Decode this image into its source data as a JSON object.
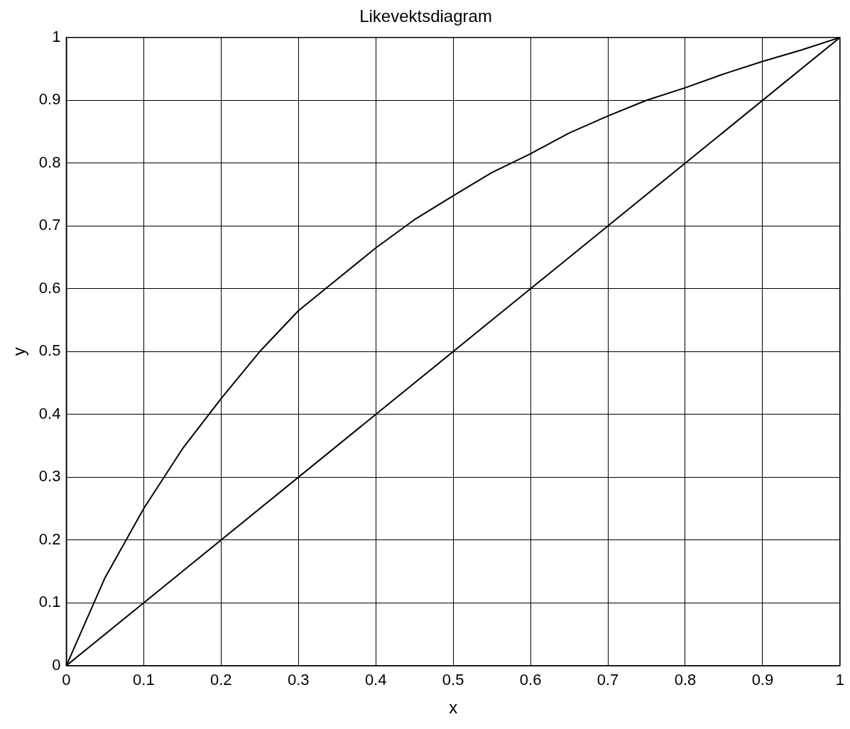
{
  "chart_data": {
    "type": "line",
    "title": "Likevektsdiagram",
    "xlabel": "x",
    "ylabel": "y",
    "xlim": [
      0,
      1
    ],
    "ylim": [
      0,
      1
    ],
    "xticks": [
      0,
      0.1,
      0.2,
      0.3,
      0.4,
      0.5,
      0.6,
      0.7,
      0.8,
      0.9,
      1
    ],
    "yticks": [
      0,
      0.1,
      0.2,
      0.3,
      0.4,
      0.5,
      0.6,
      0.7,
      0.8,
      0.9,
      1
    ],
    "grid": true,
    "legend": false,
    "marker": "none",
    "line_style": "solid",
    "series": [
      {
        "color": "#000000",
        "x": [
          0,
          0.05,
          0.1,
          0.15,
          0.2,
          0.25,
          0.3,
          0.35,
          0.4,
          0.45,
          0.5,
          0.55,
          0.6,
          0.65,
          0.7,
          0.75,
          0.8,
          0.85,
          0.9,
          0.95,
          1
        ],
        "values": [
          0,
          0.14,
          0.25,
          0.345,
          0.425,
          0.5,
          0.565,
          0.615,
          0.665,
          0.71,
          0.748,
          0.785,
          0.815,
          0.848,
          0.875,
          0.9,
          0.92,
          0.942,
          0.962,
          0.98,
          1
        ]
      },
      {
        "color": "#000000",
        "x": [
          0,
          1
        ],
        "values": [
          0,
          1
        ]
      }
    ]
  }
}
